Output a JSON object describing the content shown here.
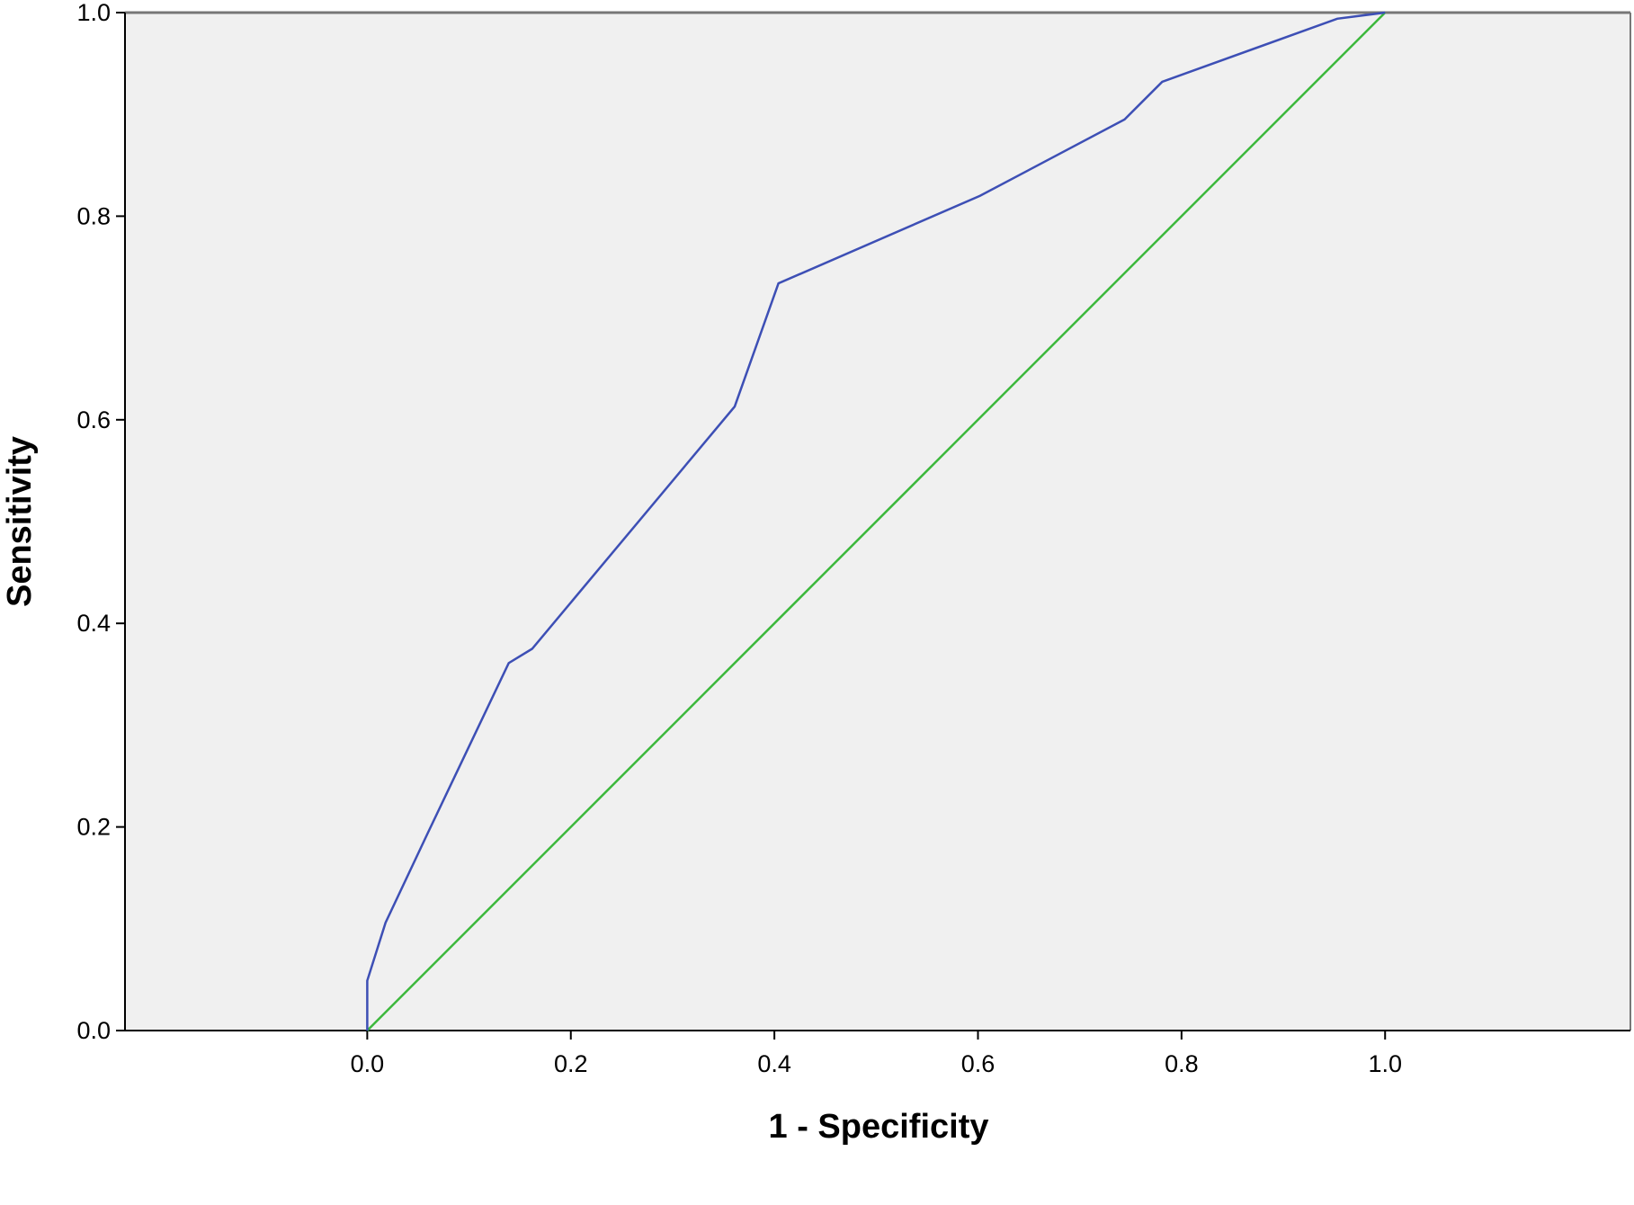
{
  "chart_data": {
    "type": "line",
    "x_label": "1 - Specificity",
    "y_label": "Sensitivity",
    "xlim": [
      -0.238,
      1.241
    ],
    "ylim": [
      0,
      1
    ],
    "xticks": [
      {
        "value": 0,
        "label": "0.0"
      },
      {
        "value": 0.2,
        "label": "0.2"
      },
      {
        "value": 0.4,
        "label": "0.4"
      },
      {
        "value": 0.6,
        "label": "0.6"
      },
      {
        "value": 0.8,
        "label": "0.8"
      },
      {
        "value": 1,
        "label": "1.0"
      }
    ],
    "yticks": [
      {
        "value": 0,
        "label": "0.0"
      },
      {
        "value": 0.2,
        "label": "0.2"
      },
      {
        "value": 0.4,
        "label": "0.4"
      },
      {
        "value": 0.6,
        "label": "0.6"
      },
      {
        "value": 0.8,
        "label": "0.8"
      },
      {
        "value": 1,
        "label": "1.0"
      }
    ],
    "background": "#f0f0f0",
    "series": [
      {
        "color": "#3d4fb5",
        "x": [
          0,
          0,
          0.018,
          0.059,
          0.139,
          0.162,
          0.361,
          0.404,
          0.602,
          0.744,
          0.781,
          0.953,
          1
        ],
        "values": [
          0,
          0.049,
          0.106,
          0.193,
          0.361,
          0.375,
          0.613,
          0.734,
          0.82,
          0.895,
          0.932,
          0.994,
          1
        ]
      },
      {
        "color": "#3cb83c",
        "x": [
          0,
          1
        ],
        "values": [
          0,
          1
        ]
      }
    ]
  }
}
